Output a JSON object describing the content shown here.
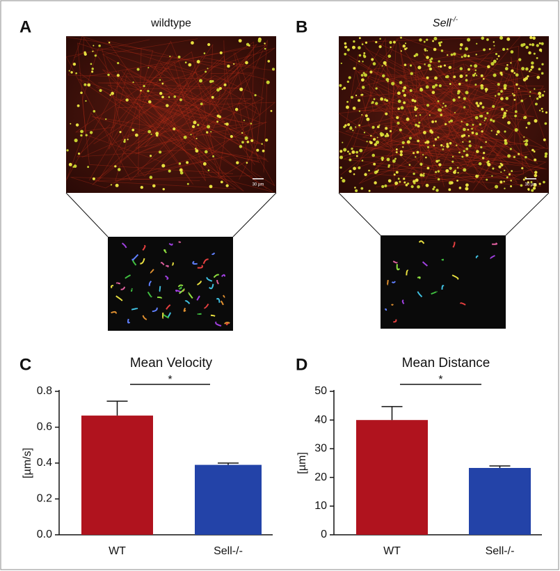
{
  "panels": [
    {
      "letter": "A",
      "title": "wildtype",
      "scale_bar": "30 µm"
    },
    {
      "letter": "B",
      "title_main": "Sell",
      "title_sup": "-/-",
      "scale_bar": "30 µm"
    }
  ],
  "chart_data": [
    {
      "type": "bar",
      "letter": "C",
      "title": "Mean Velocity",
      "ylabel": "[µm/s]",
      "categories": [
        "WT",
        "Sell-/-"
      ],
      "values": [
        0.665,
        0.39
      ],
      "errors": [
        0.08,
        0.01
      ],
      "colors": [
        "#b0131e",
        "#2343a8"
      ],
      "ylim": [
        0,
        0.8
      ],
      "yticks": [
        {
          "value": 0,
          "label": "0.0"
        },
        0.2,
        0.4,
        0.6,
        0.8
      ],
      "significance": "*"
    },
    {
      "type": "bar",
      "letter": "D",
      "title": "Mean Distance",
      "ylabel": "[µm]",
      "categories": [
        "WT",
        "Sell-/-"
      ],
      "values": [
        40,
        23.3
      ],
      "errors": [
        4.7,
        0.7
      ],
      "colors": [
        "#b0131e",
        "#2343a8"
      ],
      "ylim": [
        0,
        50
      ],
      "yticks": [
        0,
        10,
        20,
        30,
        40,
        50
      ],
      "significance": "*"
    }
  ]
}
